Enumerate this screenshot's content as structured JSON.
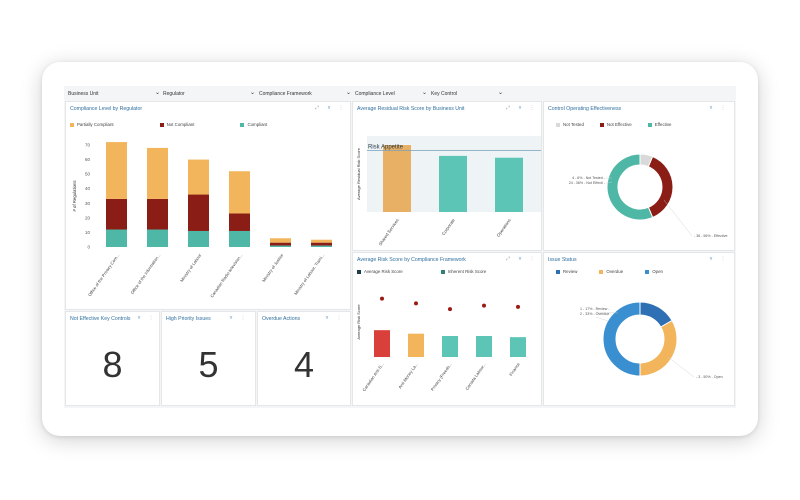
{
  "filters": [
    {
      "label": "Business Unit"
    },
    {
      "label": "Regulator"
    },
    {
      "label": "Compliance Framework"
    },
    {
      "label": "Compliance Level"
    },
    {
      "label": "Key Control"
    }
  ],
  "panels": {
    "compliance": {
      "title": "Compliance Level by Regulator",
      "legend": [
        "Partially Compliant",
        "Not Compliant",
        "Compliant"
      ],
      "ylabel": "# of Regulations"
    },
    "residual": {
      "title": "Average Residual Risk Score by Business Unit",
      "annotation": "Risk Appetite",
      "ylabel": "Average Residual Risk Score"
    },
    "effectiveness": {
      "title": "Control Operating Effectiveness",
      "legend": [
        "Not Tested",
        "Not Effective",
        "Effective"
      ],
      "callouts": [
        "4 - 6% - Not Tested -",
        "24 - 36% - Not Effecti -",
        "- 36 - 56% - Effective"
      ]
    },
    "riskscore": {
      "title": "Average Risk Score by Compliance Framework",
      "legend": [
        "Average Risk Score",
        "Inherent Risk Score"
      ],
      "ylabel": "Average Risk Score"
    },
    "issue": {
      "title": "Issue Status",
      "legend": [
        "Review",
        "Overdue",
        "Open"
      ],
      "callouts": [
        "1 - 17% - Review -",
        "2 - 33% - Overdue -",
        "- 3 - 50% - Open"
      ]
    },
    "kpis": [
      {
        "title": "Not Effective Key Controls",
        "value": "8"
      },
      {
        "title": "High Priority Issues",
        "value": "5"
      },
      {
        "title": "Overdue Actions",
        "value": "4"
      }
    ]
  },
  "chart_data": [
    {
      "type": "bar",
      "stacked": true,
      "title": "Compliance Level by Regulator",
      "ylabel": "# of Regulations",
      "ylim": [
        0,
        70
      ],
      "yticks": [
        0,
        10,
        20,
        30,
        40,
        50,
        60,
        70
      ],
      "categories": [
        "Office of the Privacy Com...",
        "Office of the Information...",
        "Ministry of Labour",
        "Canadian Radio-television...",
        "Ministry of Justice",
        "Ministry of Labour, Traini..."
      ],
      "series": [
        {
          "name": "Compliant",
          "color": "#4fb7a6",
          "values": [
            12,
            12,
            11,
            11,
            1,
            1
          ]
        },
        {
          "name": "Not Compliant",
          "color": "#8a1d16",
          "values": [
            21,
            21,
            25,
            12,
            2,
            2
          ]
        },
        {
          "name": "Partially Compliant",
          "color": "#f2b55b",
          "values": [
            39,
            35,
            24,
            29,
            3,
            2
          ]
        }
      ]
    },
    {
      "type": "bar",
      "title": "Average Residual Risk Score by Business Unit",
      "ylabel": "Average Residual Risk Score",
      "categories": [
        "Shared Services",
        "Corporate",
        "Operations"
      ],
      "values": [
        3.7,
        3.1,
        3.0
      ],
      "colors": [
        "#e8b065",
        "#5cc5b6",
        "#5cc5b6"
      ],
      "ylim": [
        0,
        4.2
      ],
      "reference_line": {
        "label": "Risk Appetite",
        "value": 3.4
      }
    },
    {
      "type": "pie",
      "donut": true,
      "title": "Control Operating Effectiveness",
      "labels": [
        "Not Tested",
        "Not Effective",
        "Effective"
      ],
      "values": [
        4,
        24,
        36
      ],
      "colors": [
        "#d9d9d9",
        "#8a1d16",
        "#4fb7a6"
      ]
    },
    {
      "type": "bar",
      "title": "Average Risk Score by Compliance Framework",
      "ylabel": "Average Risk Score",
      "categories": [
        "Canadian Anti-S...",
        "Anti-Money La...",
        "Privacy (Freedo...",
        "Canada Labour...",
        "Finance"
      ],
      "ylim": [
        0,
        6
      ],
      "series": [
        {
          "name": "Average Risk Score",
          "type": "bar",
          "values": [
            2.3,
            2.0,
            1.8,
            1.8,
            1.7
          ],
          "colors": [
            "#d9403a",
            "#f2b55b",
            "#5cc5b6",
            "#5cc5b6",
            "#5cc5b6"
          ]
        },
        {
          "name": "Inherent Risk Score",
          "type": "scatter",
          "color": "#9b1b14",
          "values": [
            5.0,
            4.6,
            4.1,
            4.4,
            4.3
          ]
        }
      ]
    },
    {
      "type": "pie",
      "donut": true,
      "title": "Issue Status",
      "labels": [
        "Review",
        "Overdue",
        "Open"
      ],
      "values": [
        1,
        2,
        3
      ],
      "colors": [
        "#2f6fb3",
        "#f2b55b",
        "#3a8fd1"
      ]
    }
  ]
}
